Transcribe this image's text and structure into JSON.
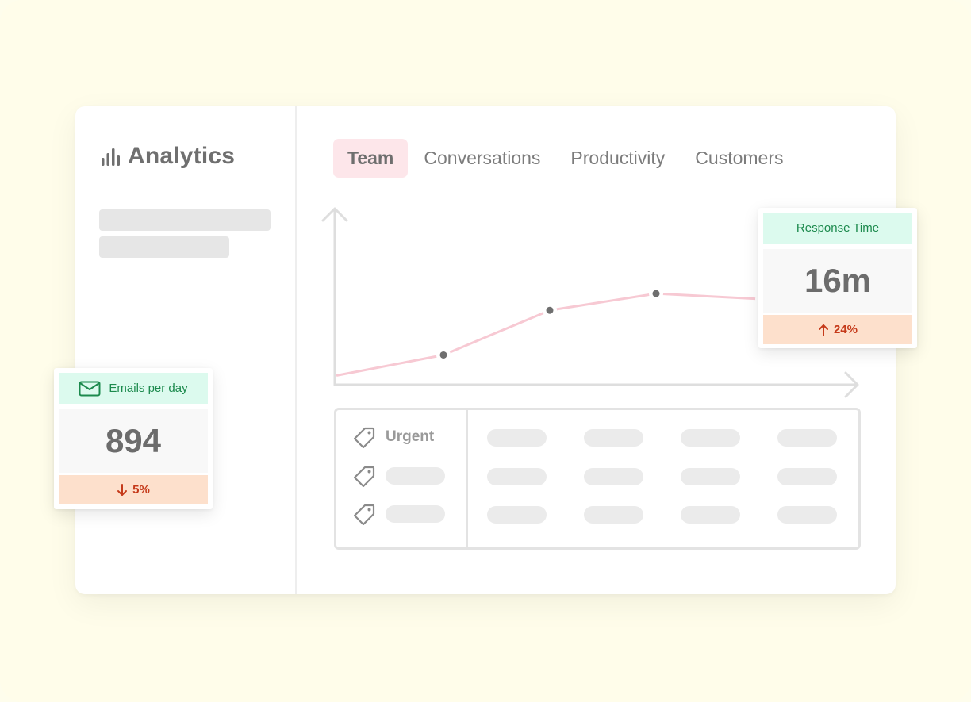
{
  "app": {
    "title": "Analytics"
  },
  "tabs": [
    {
      "label": "Team",
      "active": true
    },
    {
      "label": "Conversations",
      "active": false
    },
    {
      "label": "Productivity",
      "active": false
    },
    {
      "label": "Customers",
      "active": false
    }
  ],
  "table": {
    "first_row_label": "Urgent"
  },
  "cards": {
    "response_time": {
      "title": "Response Time",
      "value": "16m",
      "change": "24%",
      "direction": "up"
    },
    "emails_per_day": {
      "title": "Emails per day",
      "value": "894",
      "change": "5%",
      "direction": "down"
    }
  },
  "chart_data": {
    "type": "line",
    "title": "",
    "xlabel": "",
    "ylabel": "",
    "grid": false,
    "x": [
      0,
      1,
      2,
      3,
      4,
      5
    ],
    "series": [
      {
        "values": [
          0.5,
          1.6,
          4.0,
          4.9,
          4.6,
          5.5
        ],
        "color": "#f7c9d3"
      }
    ],
    "ylim": [
      0,
      9
    ],
    "point_color": "#6f6f6f"
  },
  "colors": {
    "background": "#fffdea",
    "active_tab": "#fde6ea",
    "card_header": "#dcfaee",
    "card_footer": "#fde0cc",
    "negative": "#c53a1a"
  },
  "icons": {
    "brand": "bar-chart-icon",
    "tag": "tag-icon",
    "mail": "mail-icon",
    "arrow_up": "arrow-up-icon",
    "arrow_down": "arrow-down-icon"
  }
}
